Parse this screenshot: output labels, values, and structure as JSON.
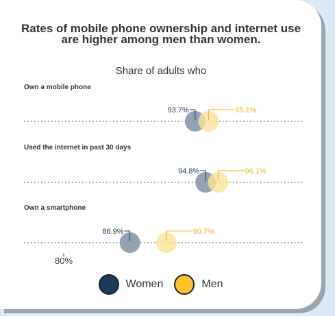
{
  "chart_data": {
    "type": "dot",
    "title": "Rates of mobile phone ownership and internet use are higher among men than women.",
    "subtitle": "Share of adults who",
    "categories": [
      "Own a mobile phone",
      "Used the internet in past 30 days",
      "Own a smartphone"
    ],
    "series": [
      {
        "name": "Women",
        "values": [
          93.7,
          94.8,
          86.9
        ],
        "labels": [
          "93.7%",
          "94.8%",
          "86.9%"
        ],
        "color": "#1b3a5c"
      },
      {
        "name": "Men",
        "values": [
          95.1,
          96.1,
          90.7
        ],
        "labels": [
          "95.1%",
          "96.1%",
          "90.7%"
        ],
        "color": "#fcc32a"
      }
    ],
    "x_tick": {
      "value": 80,
      "label": "80%"
    },
    "xlim": [
      75,
      100
    ],
    "legend_position": "bottom-center",
    "colors": {
      "women_text": "#1b3a5c",
      "men_text": "#f0b41c",
      "women_dot": "#8e9db0",
      "men_dot": "#fde29a"
    }
  }
}
